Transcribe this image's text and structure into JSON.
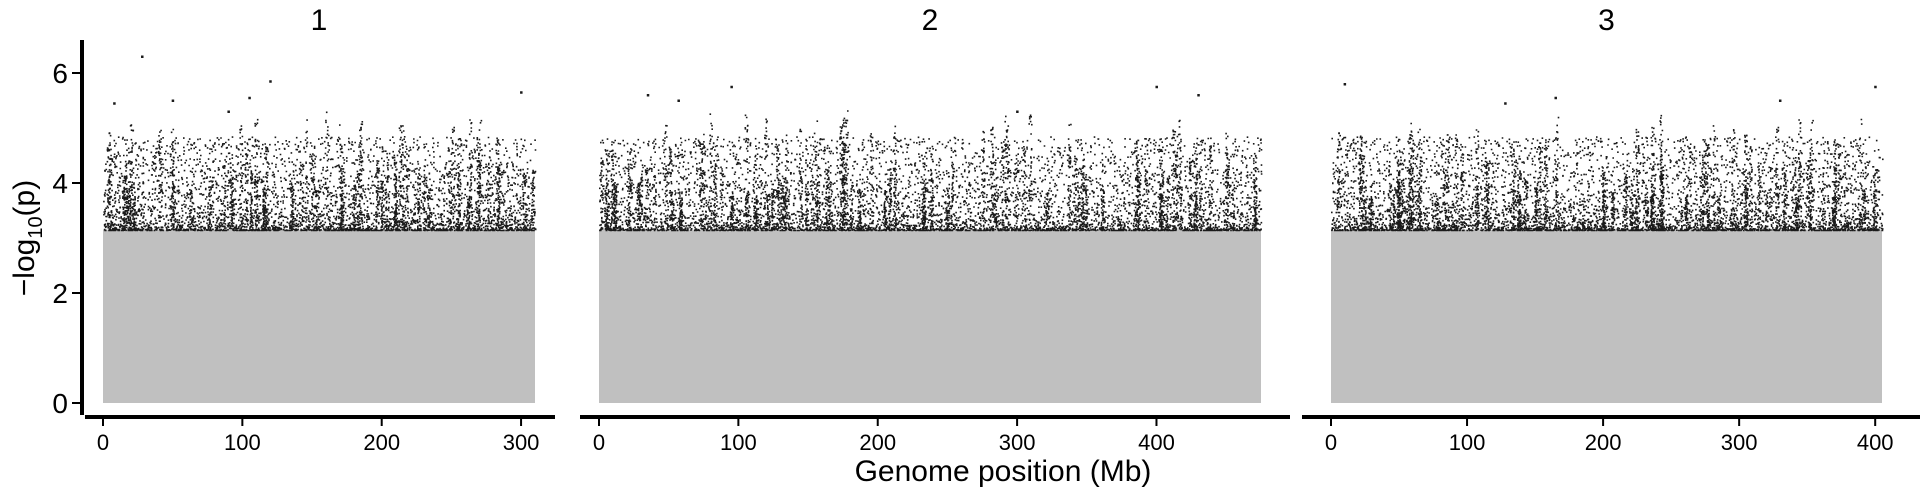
{
  "chart_data": {
    "type": "scatter",
    "subtype": "manhattan",
    "title": "",
    "xlabel": "Genome position (Mb)",
    "ylabel": "−log10(p)",
    "ylim": [
      0,
      6.5
    ],
    "y_ticks": [
      0,
      2,
      4,
      6
    ],
    "y_tick_labels": [
      "0",
      "2",
      "4",
      "6"
    ],
    "grid": false,
    "legend": "none",
    "significance_threshold": 3.15,
    "colors": {
      "below_threshold": "#c0c0c0",
      "above_threshold": "#1a1a1a",
      "axis": "#000000"
    },
    "facets": [
      {
        "label": "1",
        "xlim": [
          0,
          310
        ],
        "x_ticks": [
          0,
          100,
          200,
          300
        ],
        "x_tick_labels": [
          "0",
          "100",
          "200",
          "300"
        ],
        "peaks": [
          {
            "x": 28,
            "y": 6.3
          },
          {
            "x": 105,
            "y": 5.55
          },
          {
            "x": 120,
            "y": 5.85
          },
          {
            "x": 90,
            "y": 5.3
          },
          {
            "x": 50,
            "y": 5.5
          },
          {
            "x": 300,
            "y": 5.65
          },
          {
            "x": 8,
            "y": 5.45
          }
        ]
      },
      {
        "label": "2",
        "xlim": [
          0,
          475
        ],
        "x_ticks": [
          0,
          100,
          200,
          300,
          400
        ],
        "x_tick_labels": [
          "0",
          "100",
          "200",
          "300",
          "400"
        ],
        "peaks": [
          {
            "x": 95,
            "y": 5.75
          },
          {
            "x": 57,
            "y": 5.5
          },
          {
            "x": 400,
            "y": 5.75
          },
          {
            "x": 430,
            "y": 5.6
          },
          {
            "x": 300,
            "y": 5.3
          },
          {
            "x": 35,
            "y": 5.6
          }
        ]
      },
      {
        "label": "3",
        "xlim": [
          0,
          405
        ],
        "x_ticks": [
          0,
          100,
          200,
          300,
          400
        ],
        "x_tick_labels": [
          "0",
          "100",
          "200",
          "300",
          "400"
        ],
        "peaks": [
          {
            "x": 10,
            "y": 5.8
          },
          {
            "x": 165,
            "y": 5.55
          },
          {
            "x": 400,
            "y": 5.75
          },
          {
            "x": 128,
            "y": 5.45
          },
          {
            "x": 330,
            "y": 5.5
          }
        ]
      }
    ]
  }
}
